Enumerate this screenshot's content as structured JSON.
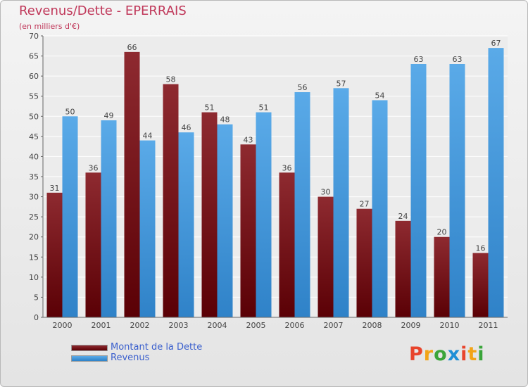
{
  "title": "Revenus/Dette - EPERRAIS",
  "subtitle": "(en milliers d'€)",
  "logo": "Proxiti",
  "colors": {
    "dette": "#7a1a1f",
    "revenus": "#4f9fdf",
    "title": "#c0385a",
    "legend_text": "#3a5fcd"
  },
  "legend": [
    {
      "label": "Montant de la Dette",
      "color": "#6b0a10"
    },
    {
      "label": "Revenus",
      "color": "#4f9fdf"
    }
  ],
  "chart_data": {
    "type": "bar",
    "title": "Revenus/Dette - EPERRAIS",
    "subtitle": "(en milliers d'€)",
    "xlabel": "",
    "ylabel": "",
    "categories": [
      "2000",
      "2001",
      "2002",
      "2003",
      "2004",
      "2005",
      "2006",
      "2007",
      "2008",
      "2009",
      "2010",
      "2011"
    ],
    "series": [
      {
        "name": "Montant de la Dette",
        "values": [
          31,
          36,
          66,
          58,
          51,
          43,
          36,
          30,
          27,
          24,
          20,
          16
        ]
      },
      {
        "name": "Revenus",
        "values": [
          50,
          49,
          44,
          46,
          48,
          51,
          56,
          57,
          54,
          63,
          63,
          67
        ]
      }
    ],
    "ylim": [
      0,
      70
    ],
    "yticks": [
      0,
      5,
      10,
      15,
      20,
      25,
      30,
      35,
      40,
      45,
      50,
      55,
      60,
      65,
      70
    ],
    "grid": true,
    "legend_position": "bottom-left"
  }
}
